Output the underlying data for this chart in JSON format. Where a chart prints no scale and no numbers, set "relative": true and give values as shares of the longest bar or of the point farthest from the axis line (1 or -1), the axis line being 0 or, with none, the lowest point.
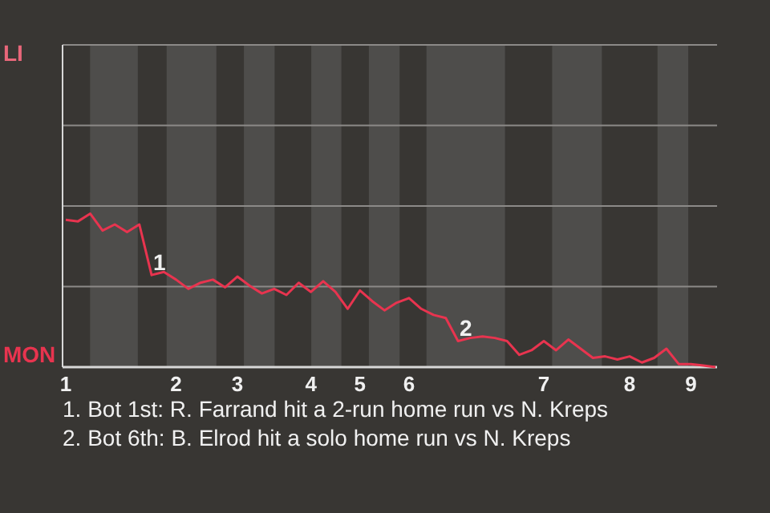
{
  "chart_data": {
    "type": "line",
    "relative": true,
    "categories": [
      "1",
      null,
      null,
      null,
      null,
      null,
      null,
      null,
      null,
      "2",
      null,
      null,
      null,
      null,
      "3",
      null,
      null,
      null,
      null,
      null,
      "4",
      null,
      null,
      null,
      "5",
      null,
      null,
      null,
      "6",
      null,
      null,
      null,
      null,
      null,
      null,
      null,
      null,
      null,
      null,
      "7",
      null,
      null,
      null,
      null,
      null,
      null,
      "8",
      null,
      null,
      null,
      null,
      "9",
      null,
      null
    ],
    "series": [
      {
        "color": "#e8344f",
        "values": [
          0.96,
          0.95,
          1,
          0.89,
          0.93,
          0.88,
          0.93,
          0.6,
          0.62,
          0.57,
          0.51,
          0.55,
          0.57,
          0.52,
          0.59,
          0.53,
          0.48,
          0.51,
          0.47,
          0.55,
          0.49,
          0.56,
          0.49,
          0.38,
          0.5,
          0.43,
          0.37,
          0.42,
          0.45,
          0.38,
          0.34,
          0.32,
          0.17,
          0.19,
          0.2,
          0.19,
          0.17,
          0.08,
          0.11,
          0.17,
          0.11,
          0.18,
          0.12,
          0.06,
          0.07,
          0.05,
          0.07,
          0.03,
          0.06,
          0.12,
          0.02,
          0.02,
          0.01,
          0
        ]
      }
    ],
    "ref_lines": [
      {
        "axis": "y",
        "value": 0.525,
        "color": "#8c8a88"
      }
    ],
    "marker": "none",
    "line_style": "solid",
    "annotations": [
      {
        "text": "1",
        "y": 0.6
      },
      {
        "text": "2",
        "y": 0.17
      },
      "LI",
      "MON",
      "1. Bot 1st: R. Farrand hit a 2-run home run vs N. Kreps",
      "2. Bot 6th: B. Elrod hit a solo home run vs N. Kreps"
    ]
  }
}
